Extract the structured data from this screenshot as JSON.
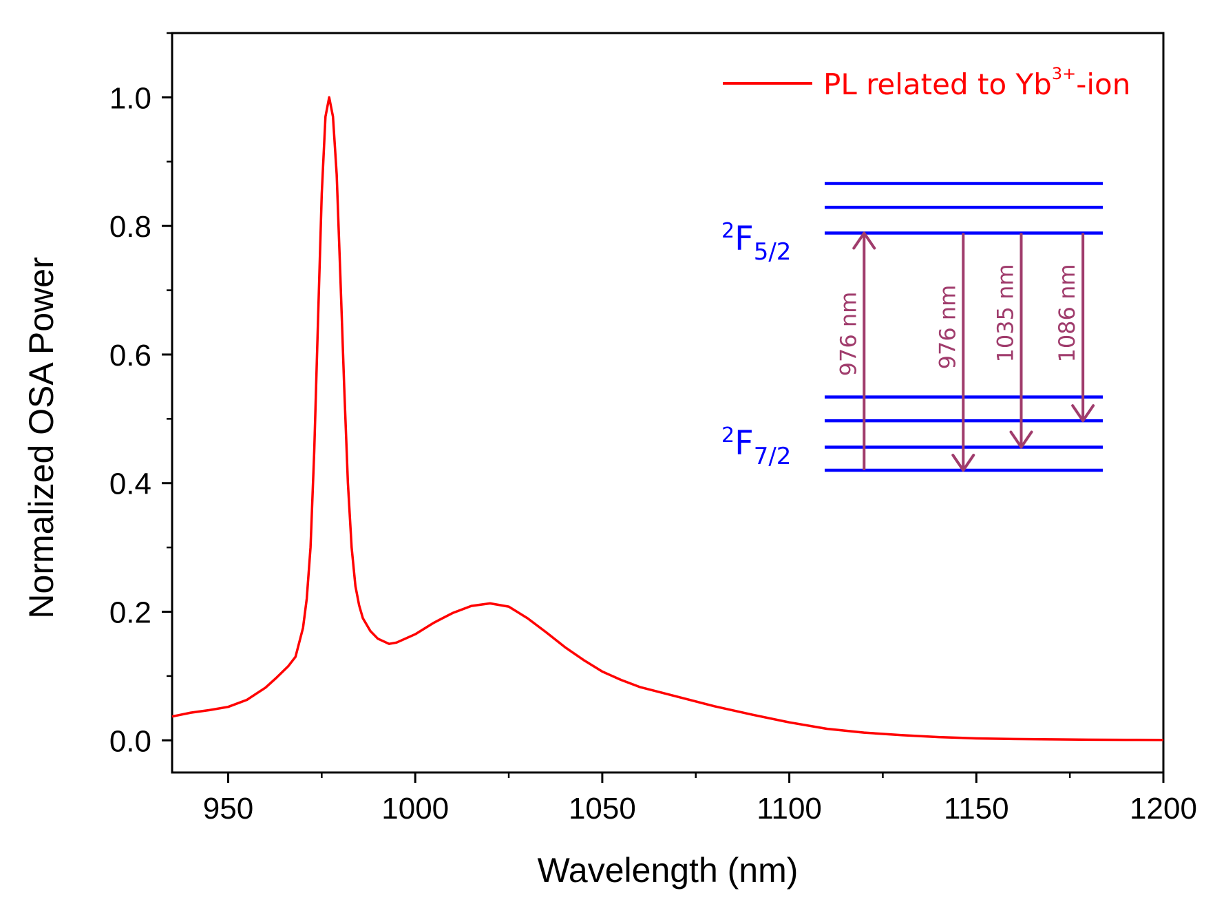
{
  "chart_data": {
    "type": "line",
    "title": "",
    "xlabel": "Wavelength (nm)",
    "ylabel": "Normalized OSA Power",
    "xlim": [
      935,
      1200
    ],
    "ylim": [
      -0.05,
      1.1
    ],
    "grid": false,
    "legend": {
      "placement": "top-right",
      "label_main": "PL related to Yb",
      "label_sup": "3+",
      "label_suffix": "-ion"
    },
    "x_ticks": [
      950,
      1000,
      1050,
      1100,
      1150,
      1200
    ],
    "x_tick_labels": [
      "950",
      "1000",
      "1050",
      "1100",
      "1150",
      "1200"
    ],
    "y_ticks": [
      0.0,
      0.2,
      0.4,
      0.6,
      0.8,
      1.0
    ],
    "y_tick_labels": [
      "0.0",
      "0.2",
      "0.4",
      "0.6",
      "0.8",
      "1.0"
    ],
    "series": [
      {
        "name": "PL related to Yb3+-ion",
        "color": "#ff0000",
        "x": [
          935,
          940,
          945,
          950,
          955,
          960,
          963,
          966,
          968,
          970,
          971,
          972,
          973,
          974,
          975,
          976,
          977,
          978,
          979,
          980,
          981,
          982,
          983,
          984,
          985,
          986,
          988,
          990,
          993,
          995,
          1000,
          1005,
          1010,
          1015,
          1020,
          1025,
          1030,
          1035,
          1040,
          1045,
          1050,
          1055,
          1060,
          1070,
          1080,
          1090,
          1100,
          1110,
          1120,
          1130,
          1140,
          1150,
          1160,
          1170,
          1180,
          1190,
          1200
        ],
        "y": [
          0.037,
          0.043,
          0.047,
          0.052,
          0.063,
          0.082,
          0.098,
          0.115,
          0.13,
          0.175,
          0.22,
          0.3,
          0.45,
          0.65,
          0.85,
          0.97,
          1.0,
          0.97,
          0.88,
          0.72,
          0.55,
          0.4,
          0.3,
          0.24,
          0.21,
          0.19,
          0.17,
          0.158,
          0.15,
          0.152,
          0.165,
          0.183,
          0.198,
          0.209,
          0.213,
          0.208,
          0.19,
          0.168,
          0.145,
          0.125,
          0.107,
          0.094,
          0.083,
          0.068,
          0.053,
          0.04,
          0.028,
          0.018,
          0.012,
          0.008,
          0.005,
          0.003,
          0.002,
          0.0015,
          0.001,
          0.0008,
          0.0005
        ]
      }
    ],
    "inset": {
      "level_color": "#0000ff",
      "arrow_color": "#a03c6c",
      "upper_levels": [
        0.866,
        0.829,
        0.789
      ],
      "lower_levels": [
        0.534,
        0.497,
        0.456,
        0.42
      ],
      "upper_term": {
        "base": "F",
        "pre_sup": "2",
        "sub": "5/2"
      },
      "lower_term": {
        "base": "F",
        "pre_sup": "2",
        "sub": "7/2"
      },
      "arrows": [
        {
          "label": "976 nm",
          "direction": "up",
          "x": 1120,
          "y_from": 0.42,
          "y_to": 0.789
        },
        {
          "label": "976 nm",
          "direction": "down",
          "x": 1146.5,
          "y_from": 0.789,
          "y_to": 0.42
        },
        {
          "label": "1035 nm",
          "direction": "down",
          "x": 1162,
          "y_from": 0.789,
          "y_to": 0.456
        },
        {
          "label": "1086 nm",
          "direction": "down",
          "x": 1178.5,
          "y_from": 0.789,
          "y_to": 0.497
        }
      ]
    }
  }
}
